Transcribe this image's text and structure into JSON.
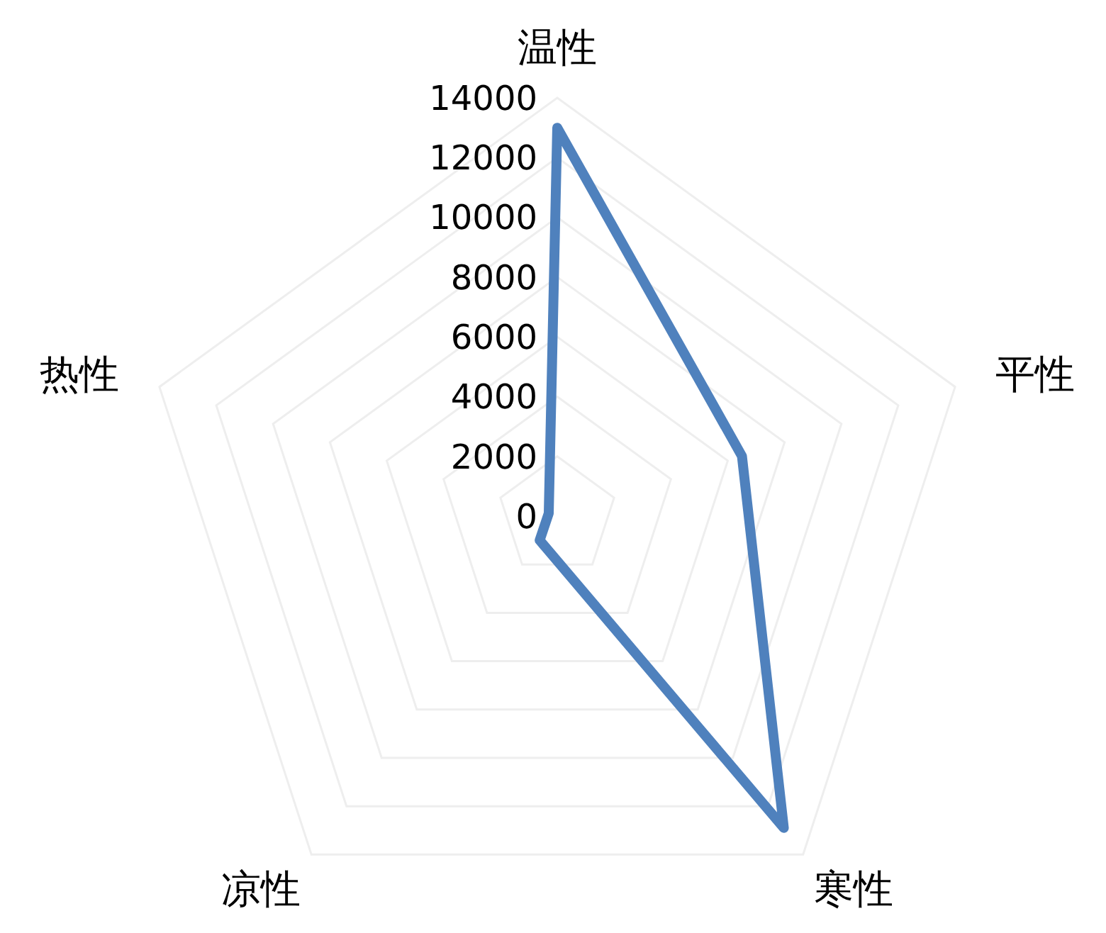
{
  "chart_data": {
    "type": "radar",
    "categories": [
      "温性",
      "平性",
      "寒性",
      "凉性",
      "热性"
    ],
    "series": [
      {
        "color": "#4f81bd",
        "values": [
          13000,
          6500,
          12900,
          1000,
          300
        ]
      }
    ],
    "ylim": [
      0,
      14000
    ],
    "yticks": [
      0,
      2000,
      4000,
      6000,
      8000,
      10000,
      12000,
      14000
    ],
    "grid": true,
    "marker": "none"
  }
}
